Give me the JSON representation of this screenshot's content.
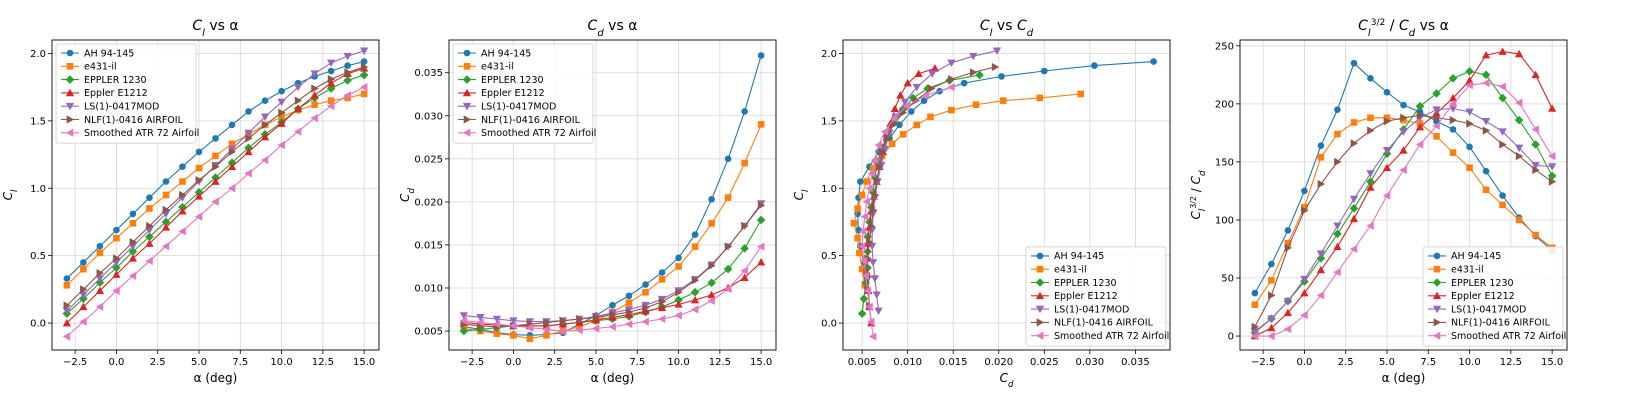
{
  "series_styles": [
    {
      "color": "#1f77b4",
      "marker": "circle"
    },
    {
      "color": "#ff7f0e",
      "marker": "square"
    },
    {
      "color": "#2ca02c",
      "marker": "diamond"
    },
    {
      "color": "#d62728",
      "marker": "triangle-up"
    },
    {
      "color": "#9467bd",
      "marker": "triangle-down"
    },
    {
      "color": "#8c564b",
      "marker": "triangle-right"
    },
    {
      "color": "#e377c2",
      "marker": "triangle-left"
    }
  ],
  "chart_data": [
    {
      "type": "line",
      "title": "C_l vs α",
      "xlabel": "α (deg)",
      "ylabel": "C_l",
      "xlim": [
        -3.9,
        15.9
      ],
      "ylim": [
        -0.2,
        2.1
      ],
      "xticks": [
        -2.5,
        0.0,
        2.5,
        5.0,
        7.5,
        10.0,
        12.5,
        15.0
      ],
      "xtick_labels": [
        "−2.5",
        "0.0",
        "2.5",
        "5.0",
        "7.5",
        "10.0",
        "12.5",
        "15.0"
      ],
      "yticks": [
        0.0,
        0.5,
        1.0,
        1.5,
        2.0
      ],
      "ytick_labels": [
        "0.0",
        "0.5",
        "1.0",
        "1.5",
        "2.0"
      ],
      "grid": true,
      "legend_position": "top-left",
      "x": [
        -3,
        -2,
        -1,
        0,
        1,
        2,
        3,
        4,
        5,
        6,
        7,
        8,
        9,
        10,
        11,
        12,
        13,
        14,
        15
      ],
      "series": [
        {
          "name": "AH 94-145",
          "values": [
            0.33,
            0.45,
            0.57,
            0.69,
            0.81,
            0.93,
            1.05,
            1.16,
            1.27,
            1.37,
            1.47,
            1.57,
            1.65,
            1.72,
            1.78,
            1.83,
            1.87,
            1.91,
            1.94
          ]
        },
        {
          "name": "e431-il",
          "values": [
            0.28,
            0.4,
            0.52,
            0.63,
            0.74,
            0.85,
            0.95,
            1.05,
            1.15,
            1.24,
            1.33,
            1.4,
            1.47,
            1.53,
            1.58,
            1.62,
            1.65,
            1.67,
            1.7
          ]
        },
        {
          "name": "EPPLER 1230",
          "values": [
            0.07,
            0.18,
            0.3,
            0.41,
            0.53,
            0.64,
            0.75,
            0.86,
            0.97,
            1.08,
            1.19,
            1.3,
            1.4,
            1.49,
            1.59,
            1.67,
            1.74,
            1.8,
            1.84
          ]
        },
        {
          "name": "Eppler E1212",
          "values": [
            0.0,
            0.12,
            0.24,
            0.36,
            0.48,
            0.59,
            0.71,
            0.83,
            0.94,
            1.05,
            1.16,
            1.27,
            1.38,
            1.48,
            1.59,
            1.69,
            1.78,
            1.85,
            1.89
          ]
        },
        {
          "name": "LS(1)-0417MOD",
          "values": [
            0.09,
            0.21,
            0.33,
            0.45,
            0.57,
            0.69,
            0.81,
            0.93,
            1.05,
            1.17,
            1.29,
            1.41,
            1.53,
            1.64,
            1.75,
            1.85,
            1.93,
            1.98,
            2.02
          ]
        },
        {
          "name": "NLF(1)-0416 AIRFOIL",
          "values": [
            0.13,
            0.25,
            0.37,
            0.48,
            0.6,
            0.72,
            0.84,
            0.95,
            1.06,
            1.16,
            1.27,
            1.37,
            1.47,
            1.56,
            1.65,
            1.74,
            1.81,
            1.86,
            1.9
          ]
        },
        {
          "name": "Smoothed ATR 72 Airfoil",
          "values": [
            -0.1,
            0.01,
            0.12,
            0.24,
            0.35,
            0.46,
            0.57,
            0.68,
            0.79,
            0.9,
            1.0,
            1.11,
            1.21,
            1.32,
            1.42,
            1.52,
            1.61,
            1.69,
            1.75
          ]
        }
      ]
    },
    {
      "type": "line",
      "title": "C_d vs α",
      "xlabel": "α (deg)",
      "ylabel": "C_d",
      "xlim": [
        -3.9,
        15.9
      ],
      "ylim": [
        0.0028,
        0.0388
      ],
      "xticks": [
        -2.5,
        0.0,
        2.5,
        5.0,
        7.5,
        10.0,
        12.5,
        15.0
      ],
      "xtick_labels": [
        "−2.5",
        "0.0",
        "2.5",
        "5.0",
        "7.5",
        "10.0",
        "12.5",
        "15.0"
      ],
      "yticks": [
        0.005,
        0.01,
        0.015,
        0.02,
        0.025,
        0.03,
        0.035
      ],
      "ytick_labels": [
        "0.005",
        "0.010",
        "0.015",
        "0.020",
        "0.025",
        "0.030",
        "0.035"
      ],
      "grid": true,
      "legend_position": "top-left",
      "x": [
        -3,
        -2,
        -1,
        0,
        1,
        2,
        3,
        4,
        5,
        6,
        7,
        8,
        9,
        10,
        11,
        12,
        13,
        14,
        15
      ],
      "series": [
        {
          "name": "AH 94-145",
          "values": [
            0.0055,
            0.0052,
            0.0048,
            0.0046,
            0.0045,
            0.0046,
            0.0048,
            0.0058,
            0.0068,
            0.008,
            0.0091,
            0.0104,
            0.0118,
            0.0135,
            0.0162,
            0.0203,
            0.025,
            0.0305,
            0.037
          ]
        },
        {
          "name": "e431-il",
          "values": [
            0.0053,
            0.005,
            0.0047,
            0.0045,
            0.0041,
            0.0045,
            0.005,
            0.0055,
            0.0062,
            0.0072,
            0.0083,
            0.0095,
            0.011,
            0.0125,
            0.0148,
            0.0175,
            0.0205,
            0.0245,
            0.029
          ]
        },
        {
          "name": "EPPLER 1230",
          "values": [
            0.005,
            0.0052,
            0.0054,
            0.0056,
            0.0056,
            0.0056,
            0.0058,
            0.006,
            0.0062,
            0.0064,
            0.0067,
            0.0072,
            0.0078,
            0.0086,
            0.0095,
            0.0106,
            0.0122,
            0.0146,
            0.0179
          ]
        },
        {
          "name": "Eppler E1212",
          "values": [
            0.006,
            0.0058,
            0.0057,
            0.0056,
            0.0056,
            0.0056,
            0.0058,
            0.006,
            0.0063,
            0.0066,
            0.0069,
            0.0073,
            0.0077,
            0.0081,
            0.0086,
            0.0092,
            0.01,
            0.0112,
            0.013
          ]
        },
        {
          "name": "LS(1)-0417MOD",
          "values": [
            0.0068,
            0.0066,
            0.0064,
            0.0062,
            0.0061,
            0.0061,
            0.0062,
            0.0064,
            0.0067,
            0.0071,
            0.0075,
            0.008,
            0.0087,
            0.0097,
            0.011,
            0.0127,
            0.0148,
            0.0172,
            0.0198
          ]
        },
        {
          "name": "NLF(1)-0416 AIRFOIL",
          "values": [
            0.0058,
            0.0056,
            0.0055,
            0.0056,
            0.0058,
            0.006,
            0.0062,
            0.0064,
            0.0066,
            0.0069,
            0.0072,
            0.0077,
            0.0084,
            0.0095,
            0.0109,
            0.0126,
            0.0148,
            0.0172,
            0.0196
          ]
        },
        {
          "name": "Smoothed ATR 72 Airfoil",
          "values": [
            0.0062,
            0.006,
            0.0058,
            0.0056,
            0.0054,
            0.0052,
            0.005,
            0.0051,
            0.0053,
            0.0055,
            0.0058,
            0.0061,
            0.0064,
            0.0068,
            0.0075,
            0.0085,
            0.0099,
            0.012,
            0.0148
          ]
        }
      ]
    },
    {
      "type": "line",
      "title": "C_l vs C_d",
      "xlabel": "C_d",
      "ylabel": "C_l",
      "xlim": [
        0.0029,
        0.0388
      ],
      "ylim": [
        -0.2,
        2.1
      ],
      "xticks": [
        0.005,
        0.01,
        0.015,
        0.02,
        0.025,
        0.03,
        0.035
      ],
      "xtick_labels": [
        "0.005",
        "0.010",
        "0.015",
        "0.020",
        "0.025",
        "0.030",
        "0.035"
      ],
      "yticks": [
        0.0,
        0.5,
        1.0,
        1.5,
        2.0
      ],
      "ytick_labels": [
        "0.0",
        "0.5",
        "1.0",
        "1.5",
        "2.0"
      ],
      "grid": true,
      "legend_position": "bottom-right",
      "series": [
        {
          "name": "AH 94-145",
          "x": [
            0.0055,
            0.0052,
            0.0048,
            0.0046,
            0.0045,
            0.0046,
            0.0048,
            0.0058,
            0.0068,
            0.008,
            0.0091,
            0.0104,
            0.0118,
            0.0135,
            0.0162,
            0.0203,
            0.025,
            0.0305,
            0.037
          ],
          "y": [
            0.33,
            0.45,
            0.57,
            0.69,
            0.81,
            0.93,
            1.05,
            1.16,
            1.27,
            1.37,
            1.47,
            1.57,
            1.65,
            1.72,
            1.78,
            1.83,
            1.87,
            1.91,
            1.94
          ]
        },
        {
          "name": "e431-il",
          "x": [
            0.0053,
            0.005,
            0.0047,
            0.0045,
            0.0041,
            0.0045,
            0.005,
            0.0055,
            0.0062,
            0.0072,
            0.0083,
            0.0095,
            0.011,
            0.0125,
            0.0148,
            0.0175,
            0.0205,
            0.0245,
            0.029
          ],
          "y": [
            0.28,
            0.4,
            0.52,
            0.63,
            0.74,
            0.85,
            0.95,
            1.05,
            1.15,
            1.24,
            1.33,
            1.4,
            1.47,
            1.53,
            1.58,
            1.62,
            1.65,
            1.67,
            1.7
          ]
        },
        {
          "name": "EPPLER 1230",
          "x": [
            0.005,
            0.0052,
            0.0054,
            0.0056,
            0.0056,
            0.0056,
            0.0058,
            0.006,
            0.0062,
            0.0064,
            0.0067,
            0.0072,
            0.0078,
            0.0086,
            0.0095,
            0.0106,
            0.0122,
            0.0146,
            0.0179
          ],
          "y": [
            0.07,
            0.18,
            0.3,
            0.41,
            0.53,
            0.64,
            0.75,
            0.86,
            0.97,
            1.08,
            1.19,
            1.3,
            1.4,
            1.49,
            1.59,
            1.67,
            1.74,
            1.8,
            1.84
          ]
        },
        {
          "name": "Eppler E1212",
          "x": [
            0.006,
            0.0058,
            0.0057,
            0.0056,
            0.0056,
            0.0056,
            0.0058,
            0.006,
            0.0063,
            0.0066,
            0.0069,
            0.0073,
            0.0077,
            0.0081,
            0.0086,
            0.0092,
            0.01,
            0.0112,
            0.013
          ],
          "y": [
            0.0,
            0.12,
            0.24,
            0.36,
            0.48,
            0.59,
            0.71,
            0.83,
            0.94,
            1.05,
            1.16,
            1.27,
            1.38,
            1.48,
            1.59,
            1.69,
            1.78,
            1.85,
            1.89
          ]
        },
        {
          "name": "LS(1)-0417MOD",
          "x": [
            0.0068,
            0.0066,
            0.0064,
            0.0062,
            0.0061,
            0.0061,
            0.0062,
            0.0064,
            0.0067,
            0.0071,
            0.0075,
            0.008,
            0.0087,
            0.0097,
            0.011,
            0.0127,
            0.0148,
            0.0172,
            0.0198
          ],
          "y": [
            0.09,
            0.21,
            0.33,
            0.45,
            0.57,
            0.69,
            0.81,
            0.93,
            1.05,
            1.17,
            1.29,
            1.41,
            1.53,
            1.64,
            1.75,
            1.85,
            1.93,
            1.98,
            2.02
          ]
        },
        {
          "name": "NLF(1)-0416 AIRFOIL",
          "x": [
            0.0058,
            0.0056,
            0.0055,
            0.0056,
            0.0058,
            0.006,
            0.0062,
            0.0064,
            0.0066,
            0.0069,
            0.0072,
            0.0077,
            0.0084,
            0.0095,
            0.0109,
            0.0126,
            0.0148,
            0.0172,
            0.0196
          ],
          "y": [
            0.13,
            0.25,
            0.37,
            0.48,
            0.6,
            0.72,
            0.84,
            0.95,
            1.06,
            1.16,
            1.27,
            1.37,
            1.47,
            1.56,
            1.65,
            1.74,
            1.81,
            1.86,
            1.9
          ]
        },
        {
          "name": "Smoothed ATR 72 Airfoil",
          "x": [
            0.0062,
            0.006,
            0.0058,
            0.0056,
            0.0054,
            0.0052,
            0.005,
            0.0051,
            0.0053,
            0.0055,
            0.0058,
            0.0061,
            0.0064,
            0.0068,
            0.0075,
            0.0085,
            0.0099,
            0.012,
            0.0148
          ],
          "y": [
            -0.1,
            0.01,
            0.12,
            0.24,
            0.35,
            0.46,
            0.57,
            0.68,
            0.79,
            0.9,
            1.0,
            1.11,
            1.21,
            1.32,
            1.42,
            1.52,
            1.61,
            1.69,
            1.75
          ]
        }
      ]
    },
    {
      "type": "line",
      "title": "C_l^{3/2} / C_d vs α",
      "xlabel": "α (deg)",
      "ylabel": "C_l^{3/2} / C_d",
      "xlim": [
        -3.9,
        15.9
      ],
      "ylim": [
        -12,
        255
      ],
      "xticks": [
        -2.5,
        0.0,
        2.5,
        5.0,
        7.5,
        10.0,
        12.5,
        15.0
      ],
      "xtick_labels": [
        "−2.5",
        "0.0",
        "2.5",
        "5.0",
        "7.5",
        "10.0",
        "12.5",
        "15.0"
      ],
      "yticks": [
        0,
        50,
        100,
        150,
        200,
        250
      ],
      "ytick_labels": [
        "0",
        "50",
        "100",
        "150",
        "200",
        "250"
      ],
      "grid": true,
      "legend_position": "bottom-right",
      "x": [
        -3,
        -2,
        -1,
        0,
        1,
        2,
        3,
        4,
        5,
        6,
        7,
        8,
        9,
        10,
        11,
        12,
        13,
        14,
        15
      ],
      "series": [
        {
          "name": "AH 94-145",
          "values": [
            37,
            62,
            91,
            125,
            164,
            195,
            235,
            222,
            210,
            199,
            193,
            185,
            178,
            163,
            142,
            121,
            102,
            86,
            74
          ]
        },
        {
          "name": "e431-il",
          "values": [
            27,
            48,
            80,
            111,
            154,
            174,
            184,
            188,
            188,
            186,
            183,
            172,
            158,
            145,
            126,
            113,
            100,
            87,
            76
          ]
        },
        {
          "name": "EPPLER 1230",
          "values": [
            3,
            15,
            30,
            47,
            67,
            88,
            110,
            133,
            157,
            178,
            198,
            209,
            222,
            228,
            225,
            205,
            186,
            165,
            138
          ]
        },
        {
          "name": "Eppler E1212",
          "values": [
            0,
            7,
            20,
            37,
            57,
            77,
            101,
            128,
            145,
            160,
            180,
            192,
            205,
            220,
            242,
            245,
            243,
            225,
            196
          ]
        },
        {
          "name": "LS(1)-0417MOD",
          "values": [
            4,
            15,
            30,
            49,
            71,
            95,
            118,
            140,
            160,
            176,
            188,
            195,
            196,
            193,
            185,
            176,
            162,
            147,
            146
          ]
        },
        {
          "name": "NLF(1)-0416 AIRFOIL",
          "values": [
            8,
            35,
            76,
            108,
            131,
            150,
            166,
            177,
            185,
            188,
            190,
            188,
            186,
            183,
            177,
            165,
            155,
            143,
            133
          ]
        },
        {
          "name": "Smoothed ATR 72 Airfoil",
          "values": [
            0,
            0,
            6,
            18,
            35,
            55,
            75,
            95,
            121,
            143,
            165,
            181,
            200,
            216,
            218,
            215,
            201,
            178,
            155
          ]
        }
      ]
    }
  ]
}
